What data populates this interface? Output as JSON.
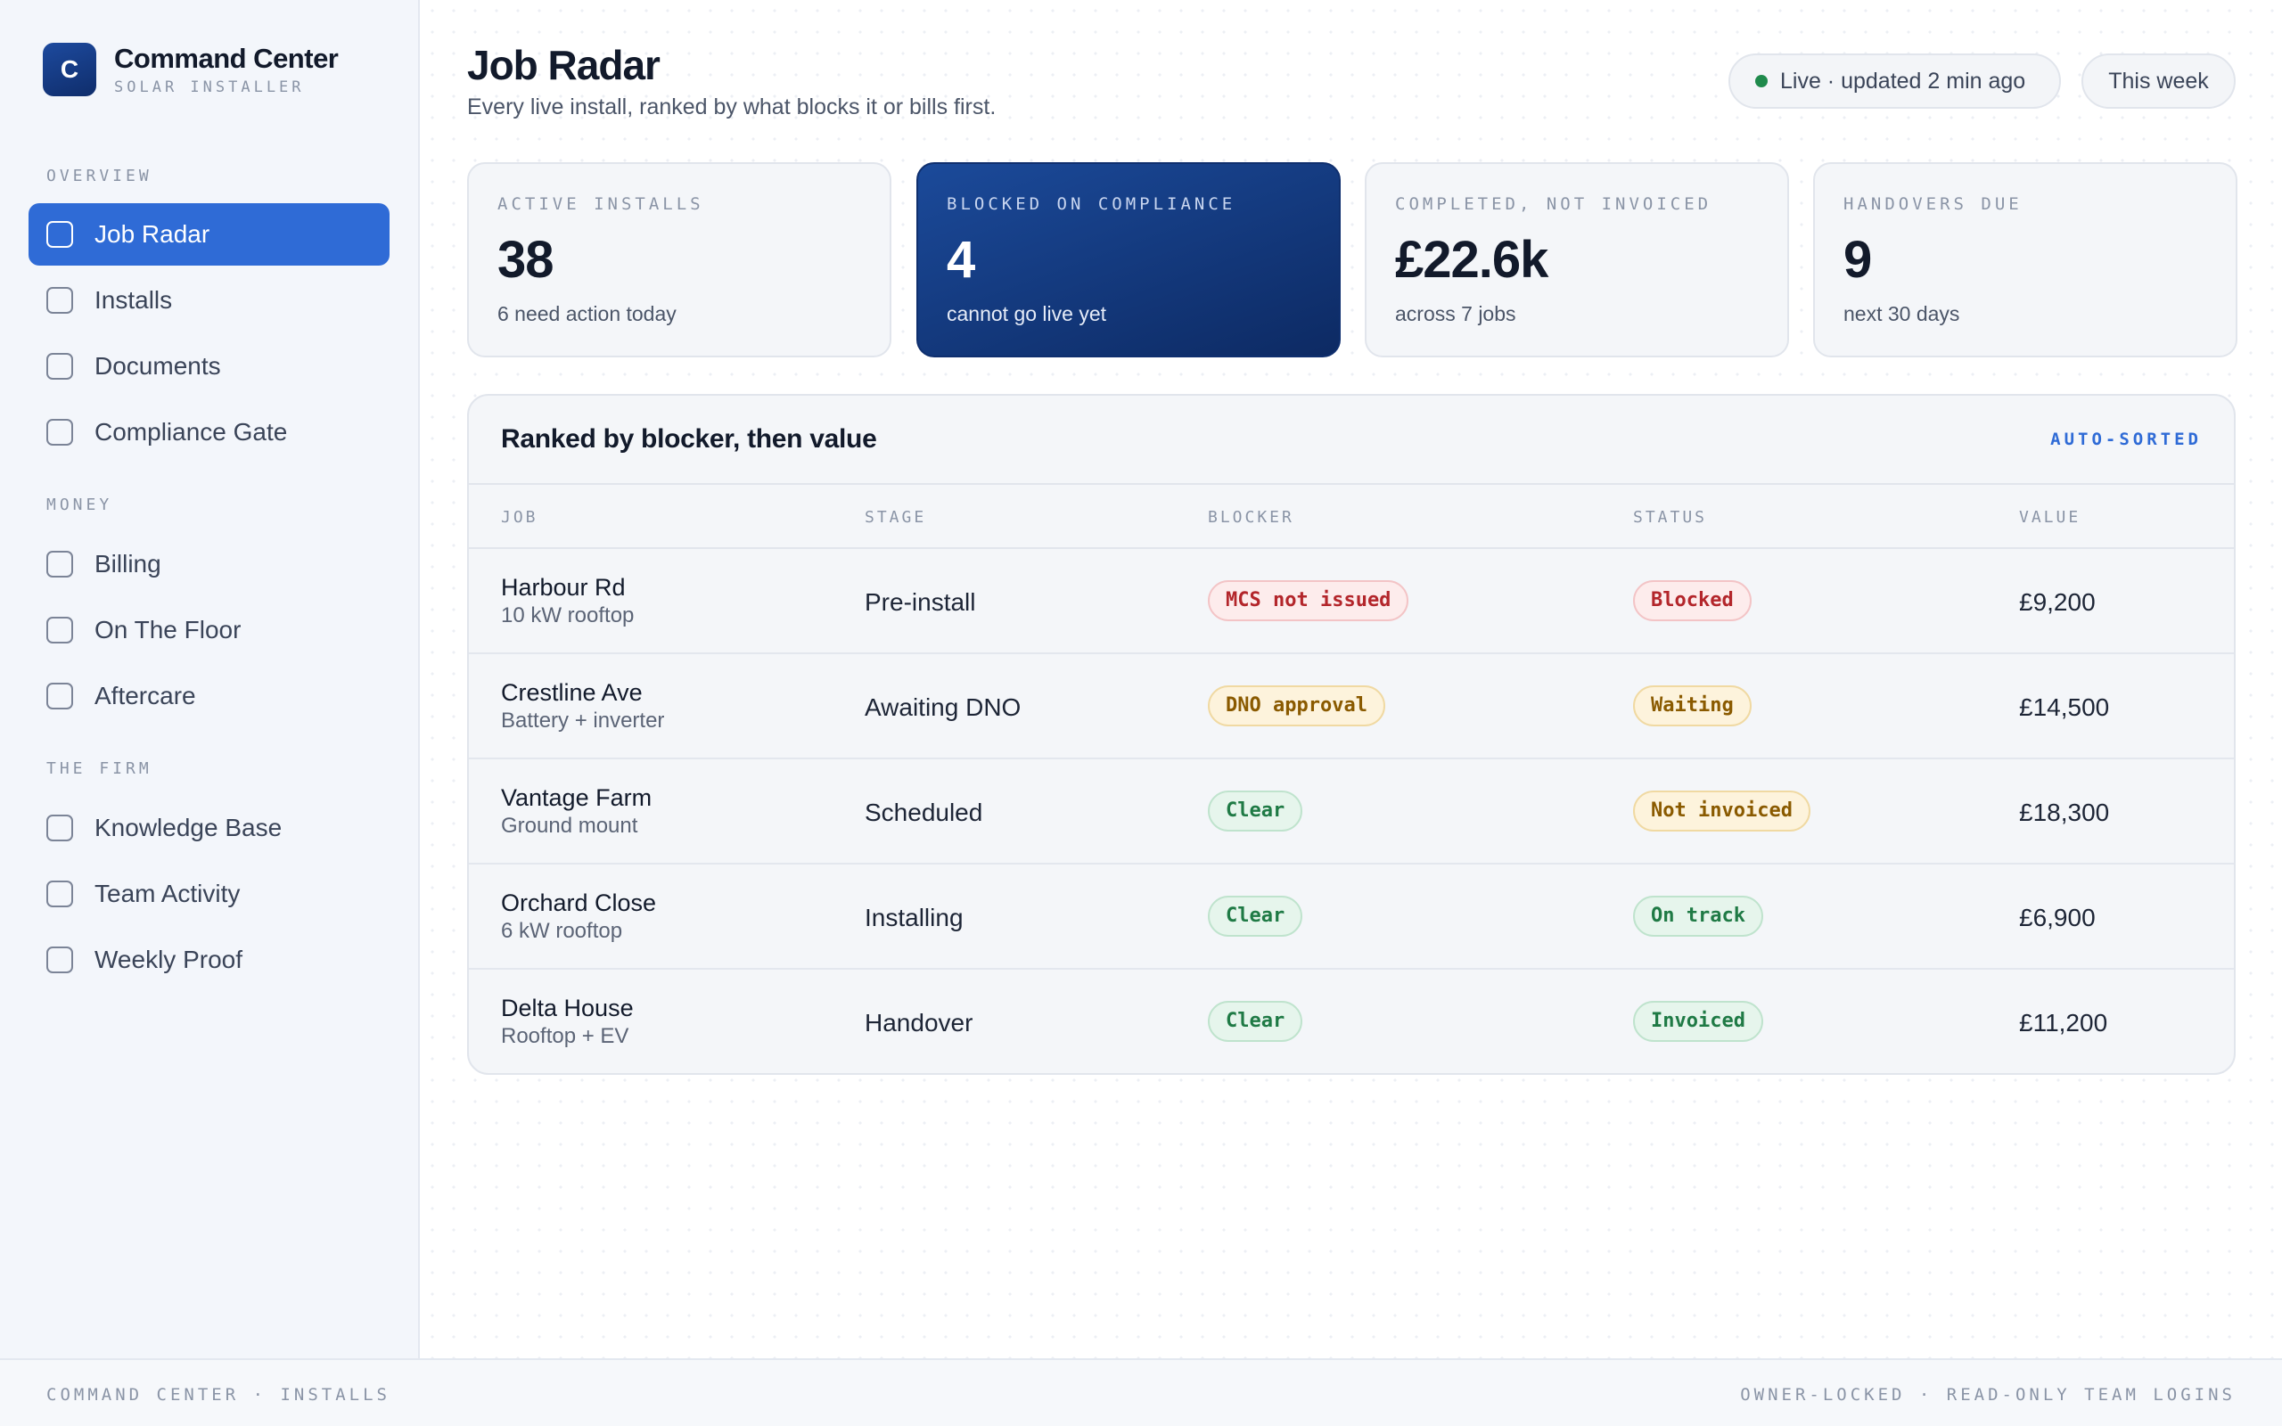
{
  "brand": {
    "logo_letter": "C",
    "name": "Command Center",
    "subtitle": "SOLAR INSTALLER"
  },
  "sidebar": {
    "sections": [
      {
        "title": "OVERVIEW",
        "items": [
          "Job Radar",
          "Installs",
          "Documents",
          "Compliance Gate"
        ]
      },
      {
        "title": "MONEY",
        "items": [
          "Billing",
          "On The Floor",
          "Aftercare"
        ]
      },
      {
        "title": "THE FIRM",
        "items": [
          "Knowledge Base",
          "Team Activity",
          "Weekly Proof"
        ]
      }
    ],
    "active_item": "Job Radar"
  },
  "header": {
    "title": "Job Radar",
    "subtitle": "Every live install, ranked by what blocks it or bills first.",
    "live_label": "Live · updated 2 min ago",
    "range_label": "This week",
    "live_color": "#1f8a4c"
  },
  "kpis": [
    {
      "label": "ACTIVE INSTALLS",
      "value": "38",
      "note": "6 need action today"
    },
    {
      "label": "BLOCKED ON COMPLIANCE",
      "value": "4",
      "note": "cannot go live yet"
    },
    {
      "label": "COMPLETED, NOT INVOICED",
      "value": "£22.6k",
      "note": "across 7 jobs"
    },
    {
      "label": "HANDOVERS DUE",
      "value": "9",
      "note": "next 30 days"
    }
  ],
  "table": {
    "title": "Ranked by blocker, then value",
    "tag": "AUTO-SORTED",
    "columns": [
      "JOB",
      "STAGE",
      "BLOCKER",
      "STATUS",
      "VALUE"
    ],
    "rows": [
      {
        "job": "Harbour Rd",
        "job_sub": "10 kW rooftop",
        "stage": "Pre-install",
        "blocker": "MCS not issued",
        "blocker_tone": "red",
        "status": "Blocked",
        "status_tone": "red",
        "value": "£9,200"
      },
      {
        "job": "Crestline Ave",
        "job_sub": "Battery + inverter",
        "stage": "Awaiting DNO",
        "blocker": "DNO approval",
        "blocker_tone": "amber",
        "status": "Waiting",
        "status_tone": "amber",
        "value": "£14,500"
      },
      {
        "job": "Vantage Farm",
        "job_sub": "Ground mount",
        "stage": "Scheduled",
        "blocker": "Clear",
        "blocker_tone": "green",
        "status": "Not invoiced",
        "status_tone": "amber",
        "value": "£18,300"
      },
      {
        "job": "Orchard Close",
        "job_sub": "6 kW rooftop",
        "stage": "Installing",
        "blocker": "Clear",
        "blocker_tone": "green",
        "status": "On track",
        "status_tone": "green",
        "value": "£6,900"
      },
      {
        "job": "Delta House",
        "job_sub": "Rooftop + EV",
        "stage": "Handover",
        "blocker": "Clear",
        "blocker_tone": "green",
        "status": "Invoiced",
        "status_tone": "green",
        "value": "£11,200"
      }
    ]
  },
  "footer": {
    "left": "COMMAND CENTER · INSTALLS",
    "right": "OWNER-LOCKED · READ-ONLY TEAM LOGINS"
  },
  "colors": {
    "accent": "#2f6bd6",
    "navy": "#0f2d6b",
    "red": "#b3262b",
    "amber": "#8a5a00",
    "green": "#1f7a45"
  }
}
